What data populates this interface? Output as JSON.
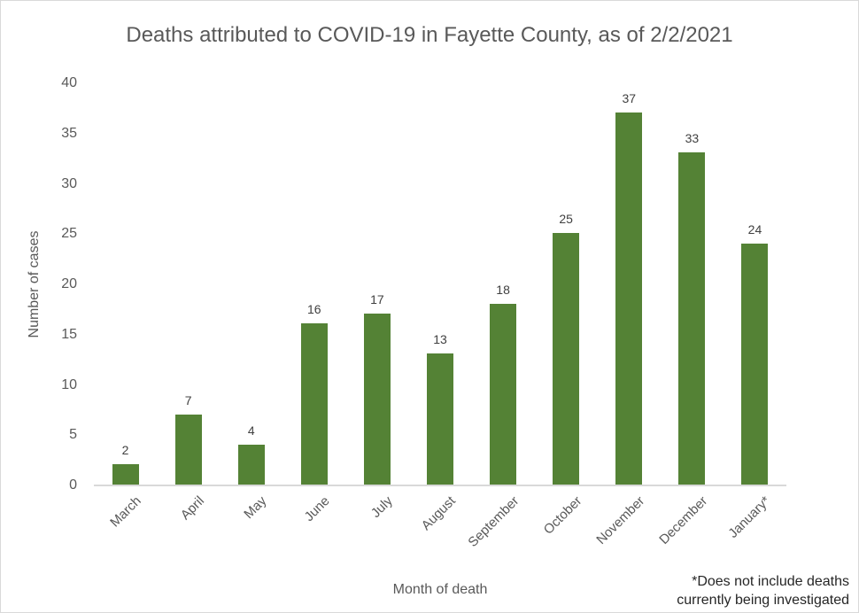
{
  "chart_data": {
    "type": "bar",
    "title": "Deaths attributed to COVID-19 in Fayette County, as of 2/2/2021",
    "categories": [
      "March",
      "April",
      "May",
      "June",
      "July",
      "August",
      "September",
      "October",
      "November",
      "December",
      "January*"
    ],
    "values": [
      2,
      7,
      4,
      16,
      17,
      13,
      18,
      25,
      37,
      33,
      24
    ],
    "xlabel": "Month of death",
    "ylabel": "Number of cases",
    "ylim": [
      0,
      40
    ],
    "ytick_interval": 5,
    "grid": false,
    "legend": false,
    "data_labels": true,
    "bar_color": "#548235",
    "data_label_color": "#404040",
    "axis_text_color": "#595959",
    "axis_line_color": "#d9d9d9",
    "footnote_color": "#262626",
    "footnote_lines": [
      "*Does not include deaths",
      "currently being investigated"
    ]
  }
}
